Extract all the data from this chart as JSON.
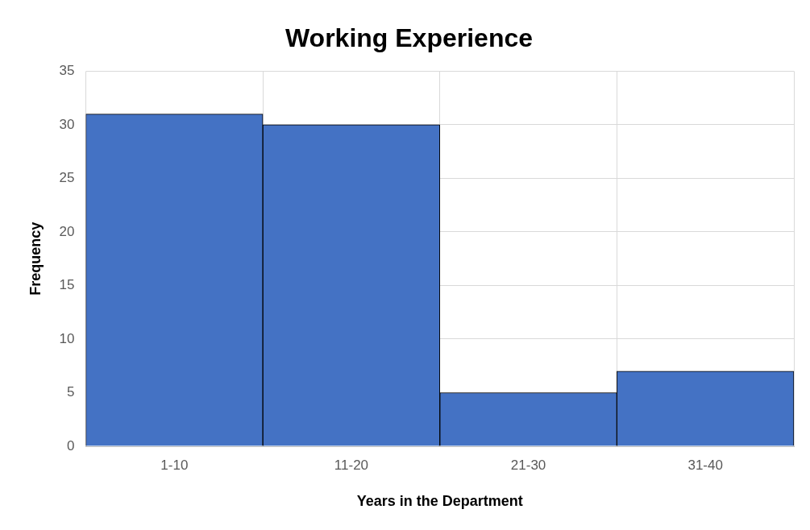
{
  "chart_data": {
    "type": "bar",
    "title": "Working Experience",
    "xlabel": "Years in the Department",
    "ylabel": "Frequency",
    "categories": [
      "1-10",
      "11-20",
      "21-30",
      "31-40"
    ],
    "values": [
      31,
      30,
      5,
      7
    ],
    "color": "#4472c4",
    "ylim": [
      0,
      35
    ],
    "yticks": [
      0,
      5,
      10,
      15,
      20,
      25,
      30,
      35
    ],
    "grid": true,
    "legend": false
  }
}
